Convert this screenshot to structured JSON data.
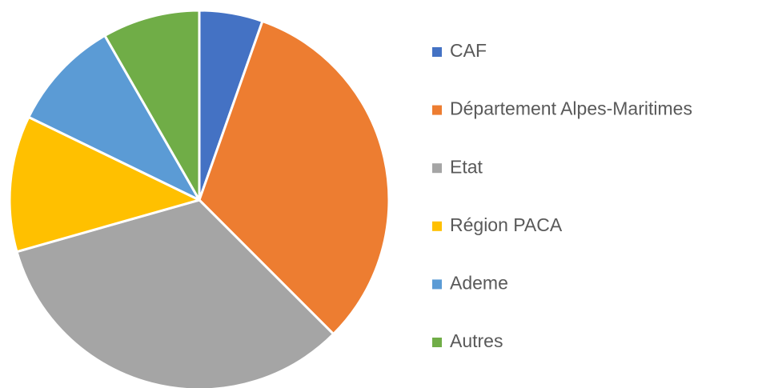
{
  "chart_data": {
    "type": "pie",
    "categories": [
      "CAF",
      "Département Alpes-Maritimes",
      "Etat",
      "Région PACA",
      "Ademe",
      "Autres"
    ],
    "values": [
      5.4,
      32.1,
      33.1,
      11.6,
      9.5,
      8.3
    ],
    "colors": [
      "#4472c4",
      "#ed7d31",
      "#a5a5a5",
      "#ffc000",
      "#5b9bd5",
      "#70ad47"
    ],
    "legend": "right"
  }
}
